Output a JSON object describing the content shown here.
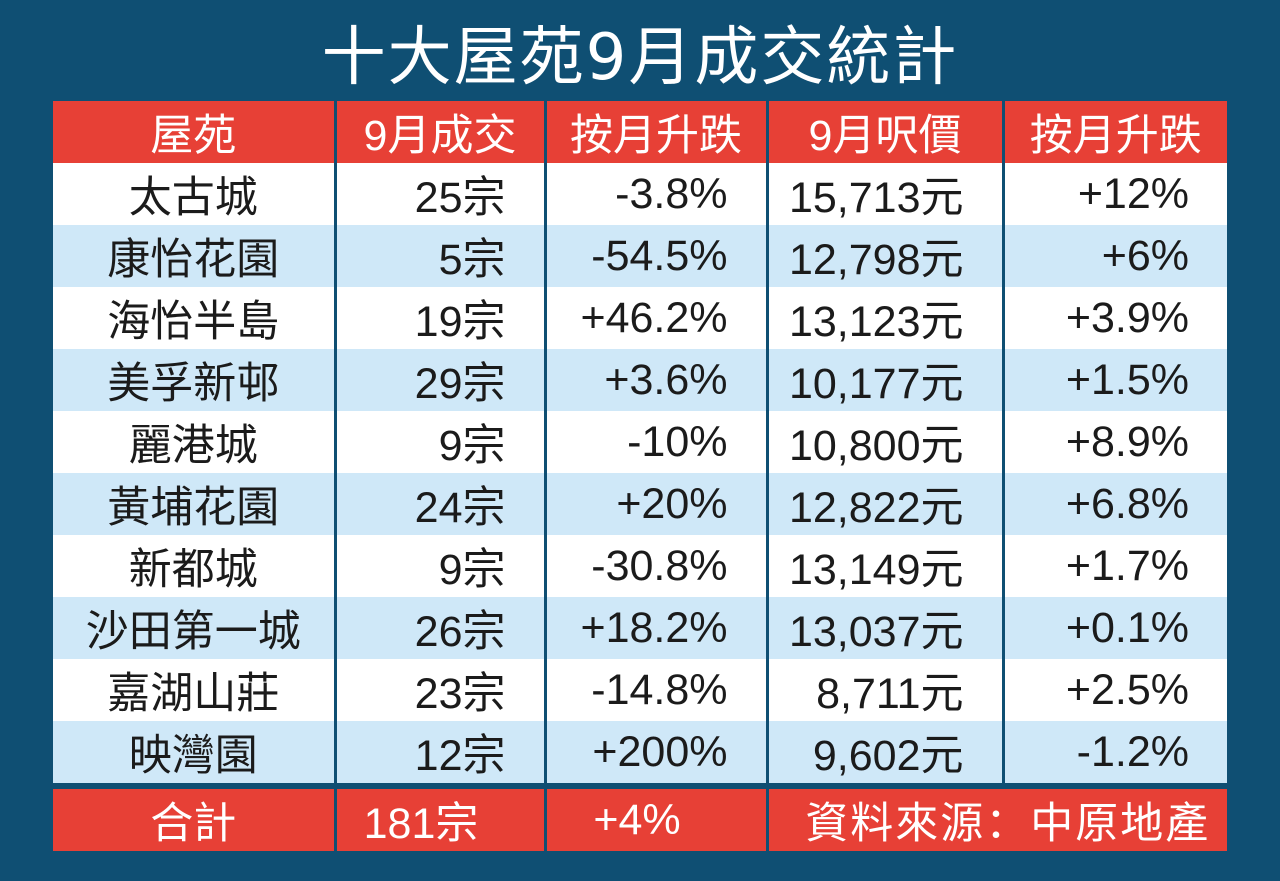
{
  "title": "十大屋苑9月成交統計",
  "chart_data": {
    "type": "table",
    "title": "十大屋苑9月成交統計",
    "columns": [
      "屋苑",
      "9月成交",
      "按月升跌",
      "9月呎價",
      "按月升跌"
    ],
    "rows": [
      [
        "太古城",
        "25宗",
        "-3.8%",
        "15,713元",
        "+12%"
      ],
      [
        "康怡花園",
        "5宗",
        "-54.5%",
        "12,798元",
        "+6%"
      ],
      [
        "海怡半島",
        "19宗",
        "+46.2%",
        "13,123元",
        "+3.9%"
      ],
      [
        "美孚新邨",
        "29宗",
        "+3.6%",
        "10,177元",
        "+1.5%"
      ],
      [
        "麗港城",
        "9宗",
        "-10%",
        "10,800元",
        "+8.9%"
      ],
      [
        "黃埔花園",
        "24宗",
        "+20%",
        "12,822元",
        "+6.8%"
      ],
      [
        "新都城",
        "9宗",
        "-30.8%",
        "13,149元",
        "+1.7%"
      ],
      [
        "沙田第一城",
        "26宗",
        "+18.2%",
        "13,037元",
        "+0.1%"
      ],
      [
        "嘉湖山莊",
        "23宗",
        "-14.8%",
        "8,711元",
        "+2.5%"
      ],
      [
        "映灣園",
        "12宗",
        "+200%",
        "9,602元",
        "-1.2%"
      ]
    ],
    "total": {
      "label": "合計",
      "transactions": "181宗",
      "change": "+4%"
    },
    "source": "資料來源：中原地產"
  },
  "colors": {
    "background": "#0f4f73",
    "header": "#e74036",
    "row_odd": "#ffffff",
    "row_even": "#cfe8f8"
  }
}
